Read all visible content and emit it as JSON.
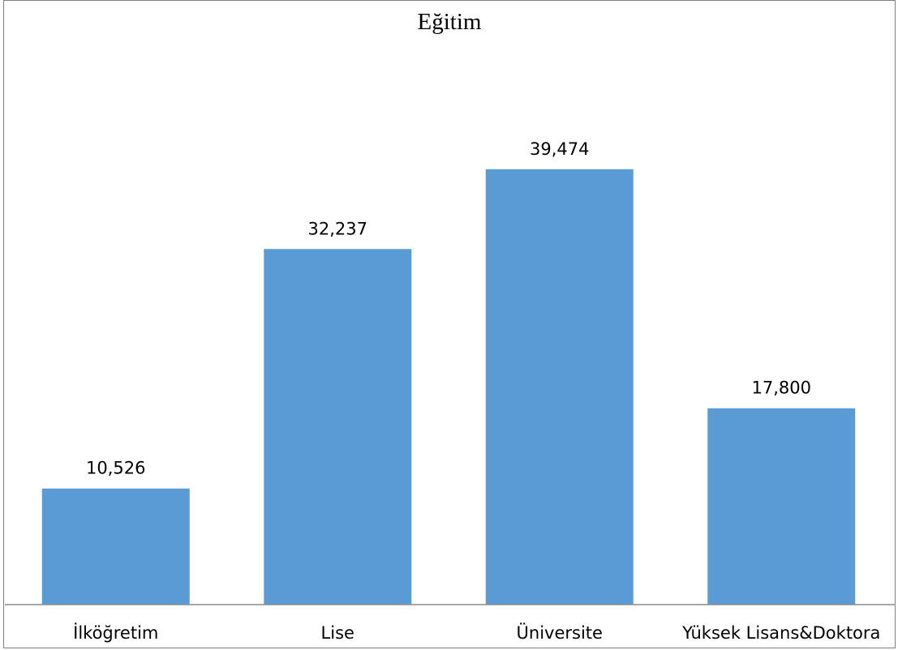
{
  "chart_data": {
    "type": "bar",
    "title": "Eğitim",
    "categories": [
      "İlköğretim",
      "Lise",
      "Üniversite",
      "Yüksek Lisans&Doktora"
    ],
    "values": [
      10.526,
      32.237,
      39.474,
      17.8
    ],
    "value_labels": [
      "10,526",
      "32,237",
      "39,474",
      "17,800"
    ],
    "xlabel": "",
    "ylabel": "",
    "ylim": [
      0,
      45
    ],
    "grid": false,
    "legend": "none",
    "bar_color": "#5b9bd5"
  }
}
